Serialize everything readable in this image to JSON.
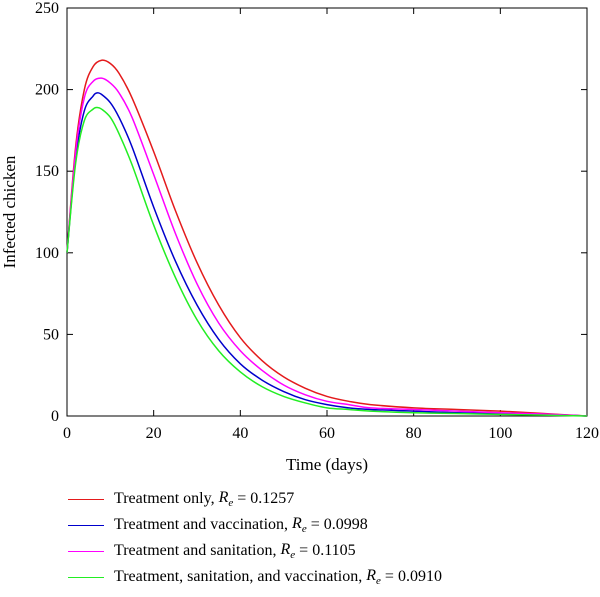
{
  "chart_data": {
    "type": "line",
    "title": "",
    "xlabel": "Time (days)",
    "ylabel": "Infected chicken",
    "xlim": [
      0,
      120
    ],
    "ylim": [
      0,
      250
    ],
    "xticks": [
      "0",
      "20",
      "40",
      "60",
      "80",
      "100",
      "120"
    ],
    "yticks": [
      "0",
      "50",
      "100",
      "150",
      "200",
      "250"
    ],
    "grid": false,
    "legend_position": "bottom",
    "legend_symbol": "R",
    "legend_symbol_sub": "e",
    "legend_eq": "=",
    "series": [
      {
        "name": "Treatment only,",
        "re_value": "0.1257",
        "color": "#e41a1c",
        "x": [
          0,
          2,
          4,
          6,
          8,
          10,
          12,
          15,
          20,
          25,
          30,
          35,
          40,
          45,
          50,
          55,
          60,
          65,
          70,
          80,
          90,
          100,
          110,
          120
        ],
        "y": [
          100,
          165,
          200,
          214,
          218,
          216,
          210,
          195,
          162,
          126,
          94,
          68,
          48,
          34,
          24,
          17,
          12,
          9,
          7,
          5,
          4,
          3,
          1.5,
          0
        ]
      },
      {
        "name": "Treatment and vaccination,",
        "re_value": "0.0998",
        "color": "#0000cc",
        "x": [
          0,
          2,
          4,
          6,
          7,
          8,
          10,
          12,
          15,
          20,
          25,
          30,
          35,
          40,
          45,
          50,
          55,
          60,
          65,
          70,
          80,
          90,
          100,
          110,
          120
        ],
        "y": [
          100,
          158,
          187,
          196,
          198,
          197,
          192,
          183,
          165,
          128,
          95,
          68,
          47,
          32,
          22,
          15,
          10,
          7,
          5,
          4,
          3,
          2,
          1.5,
          1,
          0
        ]
      },
      {
        "name": "Treatment and sanitation,",
        "re_value": "0.1105",
        "color": "#ff00ff",
        "x": [
          0,
          2,
          4,
          6,
          8,
          10,
          12,
          15,
          20,
          25,
          30,
          35,
          40,
          45,
          50,
          55,
          60,
          65,
          70,
          80,
          90,
          100,
          110,
          120
        ],
        "y": [
          100,
          162,
          195,
          205,
          207,
          204,
          198,
          183,
          148,
          112,
          81,
          57,
          40,
          28,
          19,
          13,
          9,
          7,
          5,
          4,
          3,
          2,
          1.2,
          0
        ]
      },
      {
        "name": "Treatment, sanitation, and vaccination,",
        "re_value": "0.0910",
        "color": "#22ee22",
        "x": [
          0,
          2,
          4,
          6,
          7,
          8,
          10,
          12,
          15,
          20,
          25,
          30,
          35,
          40,
          45,
          50,
          55,
          60,
          65,
          70,
          80,
          90,
          100,
          110,
          120
        ],
        "y": [
          100,
          155,
          181,
          188,
          189,
          188,
          183,
          173,
          154,
          117,
          85,
          59,
          40,
          27,
          18,
          12,
          8,
          5,
          4,
          3,
          2,
          1.5,
          1,
          0.5,
          0
        ]
      }
    ]
  }
}
